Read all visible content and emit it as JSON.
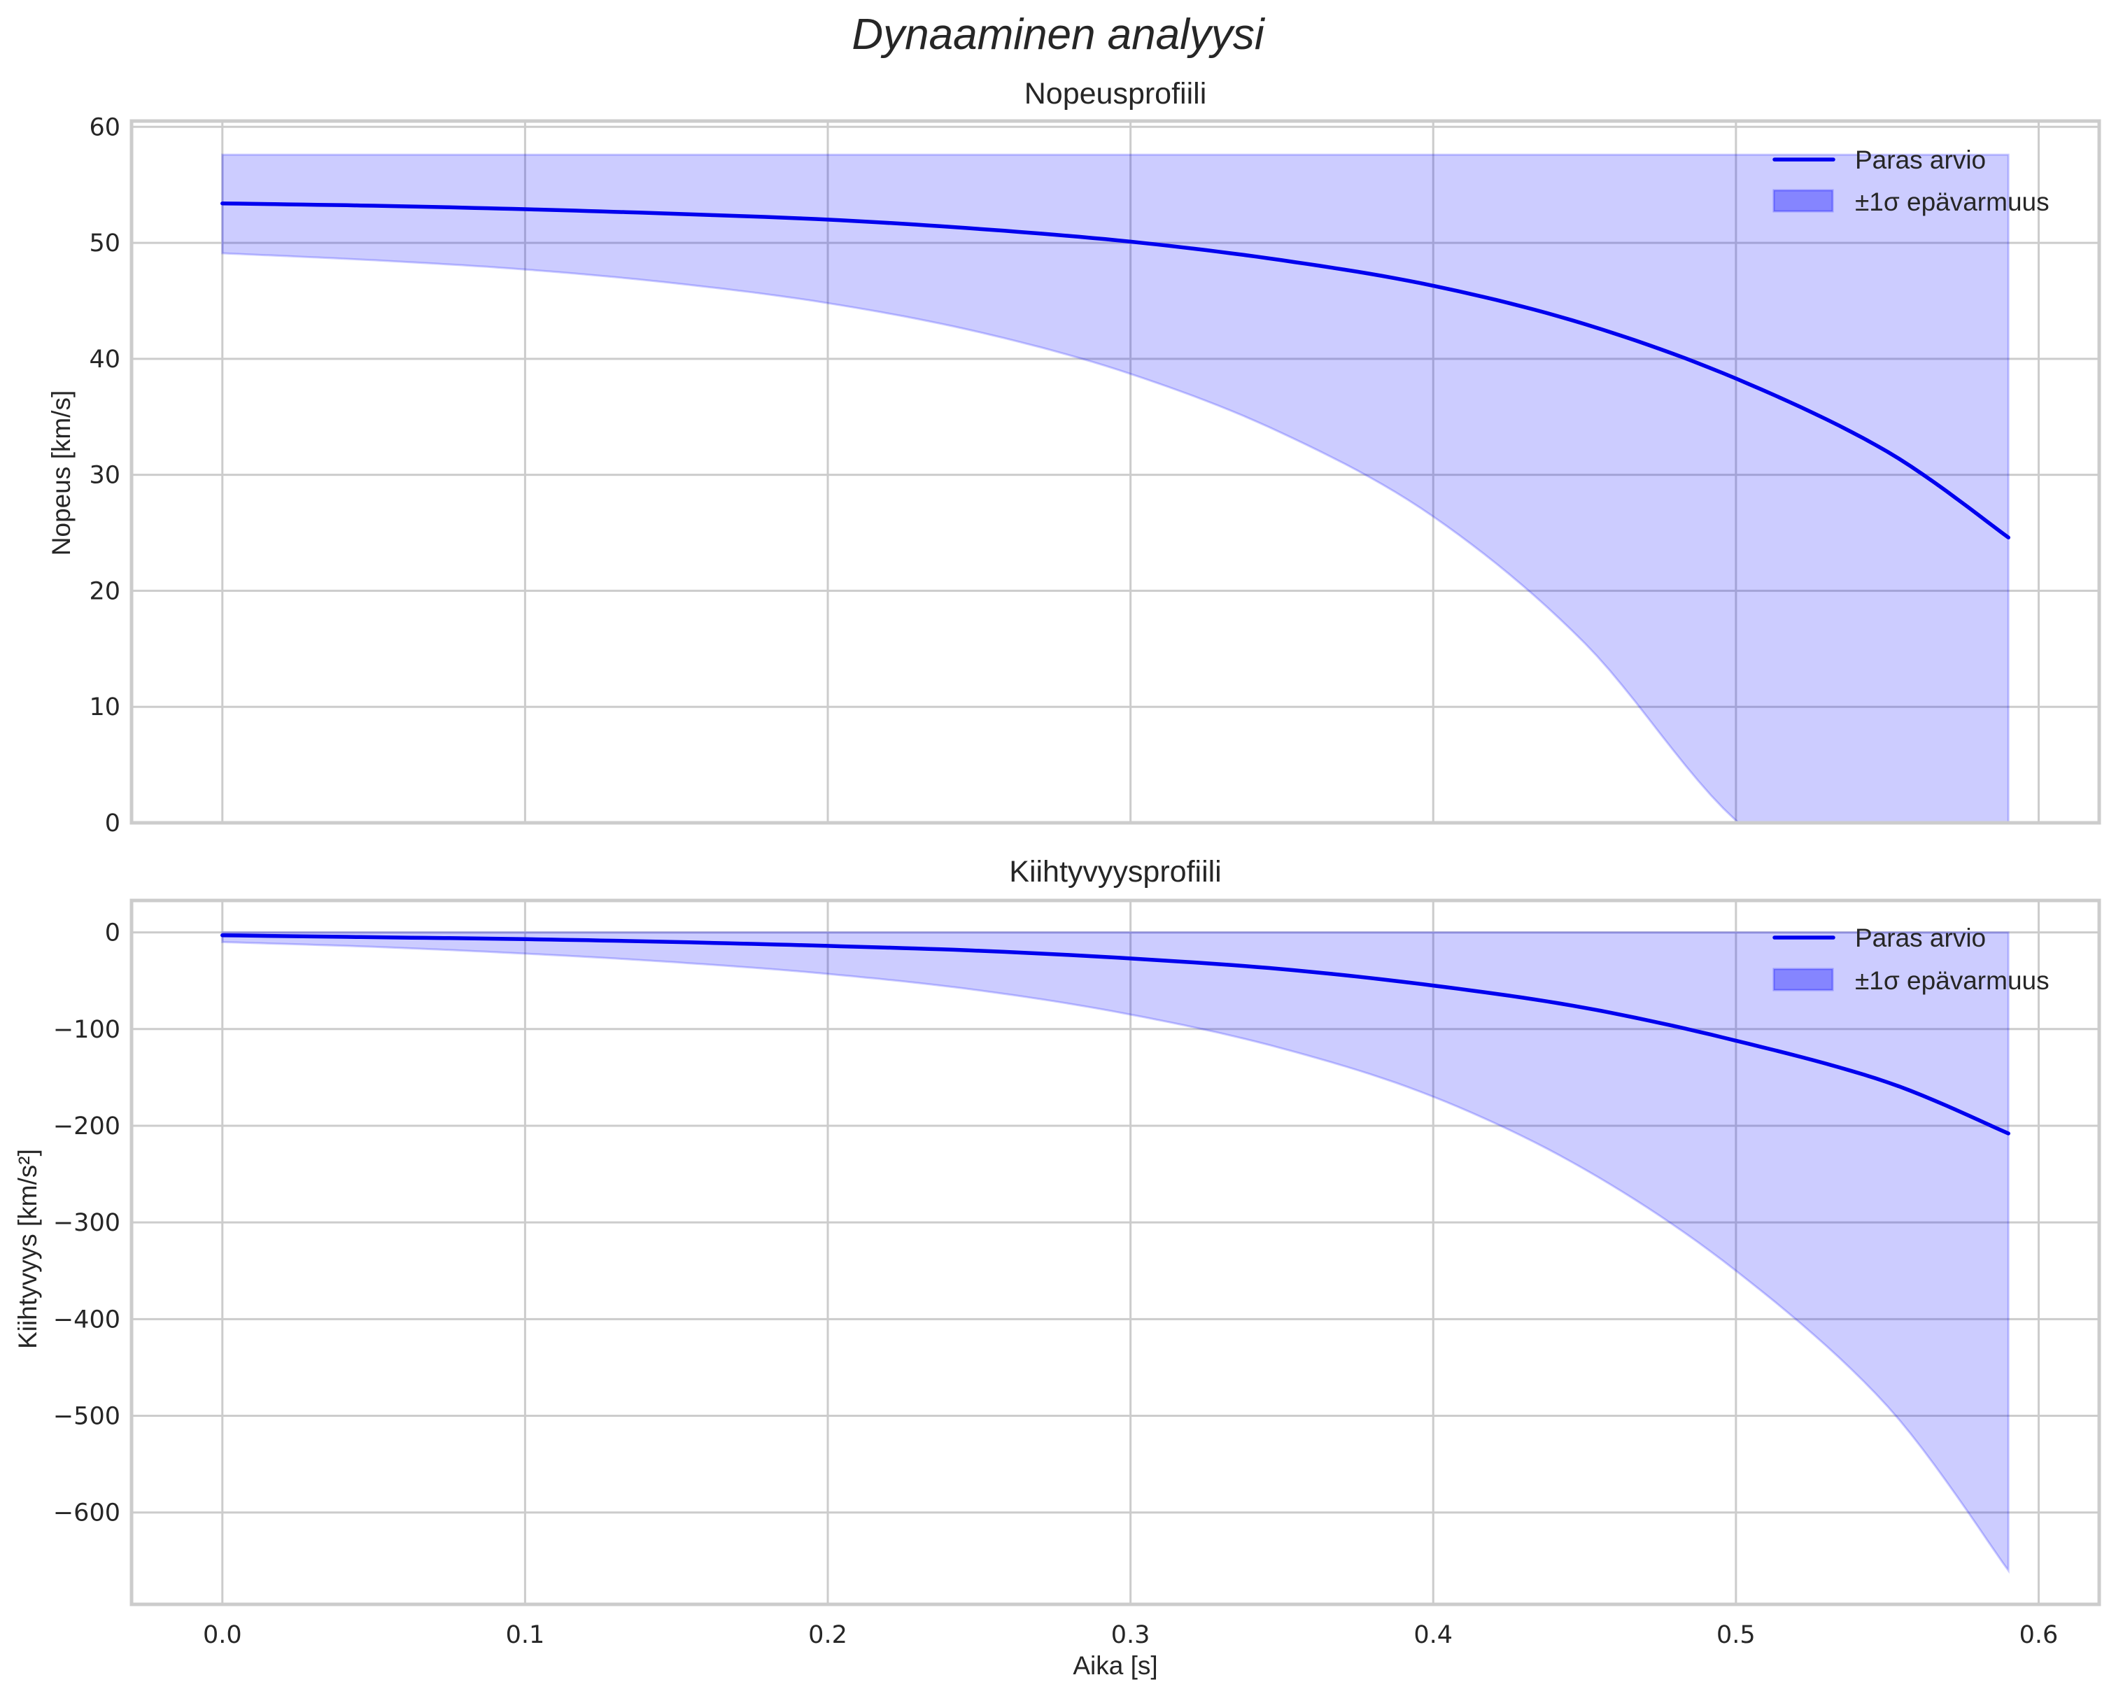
{
  "figure": {
    "suptitle": "Dynaaminen analyysi",
    "colors": {
      "line": "#0000ee",
      "band": "#0000ff",
      "band_alpha": 0.2,
      "grid": "#cccccc",
      "spine": "#cccccc",
      "text": "#262626"
    }
  },
  "chart_data": [
    {
      "type": "line",
      "title": "Nopeusprofiili",
      "xlabel": "",
      "ylabel": "Nopeus [km/s]",
      "xlim": [
        -0.03,
        0.62
      ],
      "ylim": [
        0,
        60.5
      ],
      "xticks": [
        0.0,
        0.1,
        0.2,
        0.3,
        0.4,
        0.5,
        0.6
      ],
      "xtick_labels": [
        "0.0",
        "0.1",
        "0.2",
        "0.3",
        "0.4",
        "0.5",
        "0.6"
      ],
      "xtick_labels_visible": false,
      "yticks": [
        0,
        10,
        20,
        30,
        40,
        50,
        60
      ],
      "ytick_labels": [
        "0",
        "10",
        "20",
        "30",
        "40",
        "50",
        "60"
      ],
      "grid": true,
      "legend_position": "upper right",
      "legend": [
        "Paras arvio",
        "±1σ epävarmuus"
      ],
      "x": [
        0.0,
        0.05,
        0.1,
        0.15,
        0.2,
        0.25,
        0.3,
        0.35,
        0.4,
        0.45,
        0.5,
        0.55,
        0.59
      ],
      "series": [
        {
          "name": "Paras arvio",
          "kind": "line",
          "values": [
            53.4,
            53.2,
            52.9,
            52.5,
            52.0,
            51.2,
            50.1,
            48.5,
            46.3,
            43.0,
            38.3,
            32.0,
            24.6
          ]
        },
        {
          "name": "±1σ epävarmuus (lower)",
          "kind": "band_lower",
          "values": [
            49.1,
            48.5,
            47.7,
            46.5,
            44.8,
            42.3,
            38.7,
            33.6,
            26.4,
            15.5,
            0.2,
            -8.0,
            -17.0
          ]
        },
        {
          "name": "±1σ epävarmuus (upper)",
          "kind": "band_upper",
          "values": [
            57.6,
            57.6,
            57.6,
            57.6,
            57.6,
            57.6,
            57.6,
            57.6,
            57.6,
            57.6,
            57.6,
            57.6,
            57.6
          ]
        }
      ]
    },
    {
      "type": "line",
      "title": "Kiihtyvyysprofiili",
      "xlabel": "Aika [s]",
      "ylabel": "Kiihtyvyys [km/s²]",
      "xlim": [
        -0.03,
        0.62
      ],
      "ylim": [
        -695,
        33
      ],
      "xticks": [
        0.0,
        0.1,
        0.2,
        0.3,
        0.4,
        0.5,
        0.6
      ],
      "xtick_labels": [
        "0.0",
        "0.1",
        "0.2",
        "0.3",
        "0.4",
        "0.5",
        "0.6"
      ],
      "yticks": [
        0,
        -100,
        -200,
        -300,
        -400,
        -500,
        -600
      ],
      "ytick_labels": [
        "0",
        "−100",
        "−200",
        "−300",
        "−400",
        "−500",
        "−600"
      ],
      "grid": true,
      "legend_position": "upper right",
      "legend": [
        "Paras arvio",
        "±1σ epävarmuus"
      ],
      "x": [
        0.0,
        0.05,
        0.1,
        0.15,
        0.2,
        0.25,
        0.3,
        0.35,
        0.4,
        0.45,
        0.5,
        0.55,
        0.59
      ],
      "series": [
        {
          "name": "Paras arvio",
          "kind": "line",
          "values": [
            -3,
            -5,
            -7,
            -10,
            -14,
            -19,
            -27,
            -38,
            -55,
            -78,
            -112,
            -155,
            -208
          ]
        },
        {
          "name": "±1σ epävarmuus (lower)",
          "kind": "band_lower",
          "values": [
            -10,
            -15,
            -22,
            -31,
            -43,
            -60,
            -85,
            -120,
            -170,
            -245,
            -350,
            -490,
            -660
          ]
        },
        {
          "name": "±1σ epävarmuus (upper)",
          "kind": "band_upper",
          "values": [
            0,
            0,
            0,
            0,
            0,
            0,
            0,
            0,
            0,
            0,
            0,
            0,
            0
          ]
        }
      ]
    }
  ]
}
